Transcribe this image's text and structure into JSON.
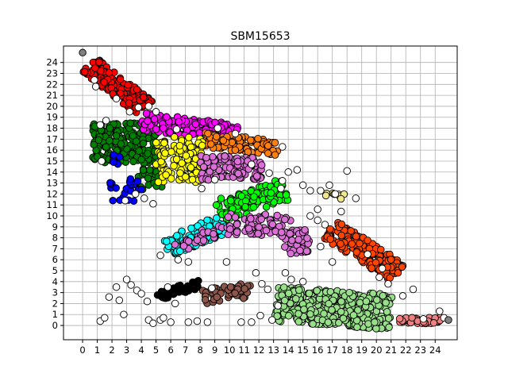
{
  "chart_data": {
    "type": "scatter",
    "title": "SBM15653",
    "xlabel": "",
    "ylabel": "",
    "xlim": [
      -1.3,
      25.5
    ],
    "ylim": [
      -1.3,
      25.5
    ],
    "x_ticks": [
      0,
      1,
      2,
      3,
      4,
      5,
      6,
      7,
      8,
      9,
      10,
      11,
      12,
      13,
      14,
      15,
      16,
      17,
      18,
      19,
      20,
      21,
      22,
      23,
      24
    ],
    "y_ticks": [
      0,
      1,
      2,
      3,
      4,
      5,
      6,
      7,
      8,
      9,
      10,
      11,
      12,
      13,
      14,
      15,
      16,
      17,
      18,
      19,
      20,
      21,
      22,
      23,
      24
    ],
    "grid": true,
    "legend": "none",
    "clusters": [
      {
        "color": "#ff0000",
        "shape": "band",
        "from": [
          0.5,
          23.8
        ],
        "to": [
          4.2,
          19.9
        ],
        "width": 1.6,
        "count": 160
      },
      {
        "color": "#008000",
        "shape": "rect",
        "x": [
          0.7,
          5.0
        ],
        "y": [
          14.8,
          18.5
        ],
        "count": 180
      },
      {
        "color": "#008000",
        "shape": "rect",
        "x": [
          3.8,
          5.5
        ],
        "y": [
          12.4,
          14.4
        ],
        "count": 25
      },
      {
        "color": "#ff00ff",
        "shape": "band",
        "from": [
          4.0,
          18.6
        ],
        "to": [
          10.5,
          17.6
        ],
        "width": 1.6,
        "count": 130
      },
      {
        "color": "#ff7f0e",
        "shape": "band",
        "from": [
          8.0,
          17.0
        ],
        "to": [
          13.3,
          16.2
        ],
        "width": 1.4,
        "count": 110
      },
      {
        "color": "#ffff00",
        "shape": "rect",
        "x": [
          5.0,
          8.2
        ],
        "y": [
          13.0,
          17.2
        ],
        "count": 130
      },
      {
        "color": "#da70d6",
        "shape": "rect",
        "x": [
          8.0,
          12.2
        ],
        "y": [
          13.2,
          15.5
        ],
        "count": 110
      },
      {
        "color": "#0000ff",
        "shape": "rect",
        "x": [
          1.8,
          4.0
        ],
        "y": [
          11.2,
          13.4
        ],
        "count": 22
      },
      {
        "color": "#0000ff",
        "shape": "rect",
        "x": [
          1.8,
          2.6
        ],
        "y": [
          14.6,
          15.6
        ],
        "count": 6
      },
      {
        "color": "#00ff00",
        "shape": "band",
        "from": [
          9.2,
          10.4
        ],
        "to": [
          13.8,
          12.4
        ],
        "width": 2.0,
        "count": 110
      },
      {
        "color": "#00ffff",
        "shape": "band",
        "from": [
          5.7,
          7.0
        ],
        "to": [
          9.6,
          9.3
        ],
        "width": 1.7,
        "count": 110
      },
      {
        "color": "#da70d6",
        "shape": "band",
        "from": [
          6.5,
          7.0
        ],
        "to": [
          9.5,
          9.0
        ],
        "width": 1.0,
        "count": 25
      },
      {
        "color": "#da70d6",
        "shape": "rect",
        "x": [
          9.8,
          14.3
        ],
        "y": [
          8.2,
          10.2
        ],
        "count": 70
      },
      {
        "color": "#da70d6",
        "shape": "rect",
        "x": [
          13.5,
          15.5
        ],
        "y": [
          6.5,
          8.8
        ],
        "count": 40
      },
      {
        "color": "#f0e68c",
        "shape": "rect",
        "x": [
          16.5,
          17.8
        ],
        "y": [
          11.5,
          12.3
        ],
        "count": 8
      },
      {
        "color": "#ff4500",
        "shape": "band",
        "from": [
          16.8,
          8.8
        ],
        "to": [
          21.5,
          4.8
        ],
        "width": 1.8,
        "count": 190
      },
      {
        "color": "#000000",
        "shape": "band",
        "from": [
          5.0,
          2.6
        ],
        "to": [
          8.0,
          3.8
        ],
        "width": 0.8,
        "count": 35
      },
      {
        "color": "#8c564b",
        "shape": "band",
        "from": [
          8.2,
          2.6
        ],
        "to": [
          11.5,
          3.2
        ],
        "width": 1.4,
        "count": 45
      },
      {
        "color": "#98df8a",
        "shape": "band",
        "from": [
          13.2,
          2.0
        ],
        "to": [
          21.0,
          1.2
        ],
        "width": 3.2,
        "count": 380
      },
      {
        "color": "#f08080",
        "shape": "band",
        "from": [
          21.5,
          0.4
        ],
        "to": [
          24.4,
          0.5
        ],
        "width": 0.6,
        "count": 45
      },
      {
        "color": "#ffffff",
        "shape": "points",
        "points": [
          [
            1.2,
            0.4
          ],
          [
            1.5,
            0.7
          ],
          [
            1.8,
            2.6
          ],
          [
            2.3,
            3.5
          ],
          [
            2.5,
            2.3
          ],
          [
            2.8,
            1.0
          ],
          [
            3.0,
            4.2
          ],
          [
            3.3,
            3.7
          ],
          [
            3.7,
            3.2
          ],
          [
            4.0,
            2.9
          ],
          [
            4.4,
            2.2
          ],
          [
            4.5,
            0.5
          ],
          [
            4.8,
            0.2
          ],
          [
            5.3,
            0.5
          ],
          [
            5.5,
            0.7
          ],
          [
            6.0,
            0.3
          ],
          [
            6.3,
            2.0
          ],
          [
            5.8,
            3.5
          ],
          [
            7.2,
            0.3
          ],
          [
            7.8,
            0.4
          ],
          [
            8.5,
            0.3
          ],
          [
            8.8,
            3.4
          ],
          [
            10.8,
            0.3
          ],
          [
            11.5,
            0.3
          ],
          [
            12.2,
            3.8
          ],
          [
            12.6,
            3.3
          ],
          [
            11.8,
            4.8
          ],
          [
            9.8,
            5.8
          ],
          [
            7.2,
            5.8
          ],
          [
            6.5,
            6.0
          ],
          [
            5.3,
            6.4
          ],
          [
            13.8,
            4.8
          ],
          [
            14.2,
            4.2
          ],
          [
            15.0,
            4.0
          ],
          [
            17.0,
            5.8
          ],
          [
            16.2,
            7.2
          ],
          [
            16.5,
            9.2
          ],
          [
            16.0,
            9.6
          ],
          [
            15.5,
            10.0
          ],
          [
            16.0,
            10.6
          ],
          [
            16.2,
            12.3
          ],
          [
            16.8,
            12.8
          ],
          [
            18.0,
            14.1
          ],
          [
            17.2,
            12.0
          ],
          [
            18.6,
            11.6
          ],
          [
            17.6,
            10.4
          ],
          [
            22.5,
            3.3
          ],
          [
            21.8,
            2.7
          ],
          [
            24.3,
            1.3
          ],
          [
            13.5,
            12.5
          ],
          [
            13.6,
            13.2
          ],
          [
            14.0,
            14.0
          ],
          [
            14.6,
            14.2
          ],
          [
            15.0,
            12.8
          ],
          [
            15.5,
            12.3
          ],
          [
            12.7,
            13.9
          ],
          [
            11.5,
            14.7
          ],
          [
            10.4,
            17.5
          ],
          [
            9.2,
            18.0
          ],
          [
            13.6,
            16.3
          ],
          [
            5.0,
            19.5
          ],
          [
            4.5,
            20.0
          ],
          [
            4.8,
            11.1
          ],
          [
            4.2,
            11.6
          ],
          [
            3.6,
            12.0
          ],
          [
            2.9,
            11.4
          ],
          [
            1.3,
            15.0
          ],
          [
            1.2,
            18.3
          ],
          [
            1.6,
            18.7
          ],
          [
            0.8,
            22.4
          ],
          [
            0.9,
            21.8
          ],
          [
            2.3,
            20.7
          ],
          [
            3.2,
            19.5
          ],
          [
            3.8,
            19.9
          ],
          [
            6.4,
            17.9
          ],
          [
            9.0,
            13.3
          ],
          [
            8.1,
            12.5
          ],
          [
            19.4,
            6.5
          ],
          [
            20.4,
            5.2
          ],
          [
            20.2,
            4.4
          ],
          [
            20.8,
            3.8
          ],
          [
            23.2,
            0.6
          ],
          [
            24.6,
            0.7
          ],
          [
            13.3,
            1.8
          ],
          [
            12.9,
            0.5
          ],
          [
            12.1,
            0.9
          ]
        ]
      },
      {
        "color": "#808080",
        "shape": "points",
        "points": [
          [
            0.0,
            24.9
          ],
          [
            24.9,
            0.5
          ]
        ]
      }
    ]
  }
}
